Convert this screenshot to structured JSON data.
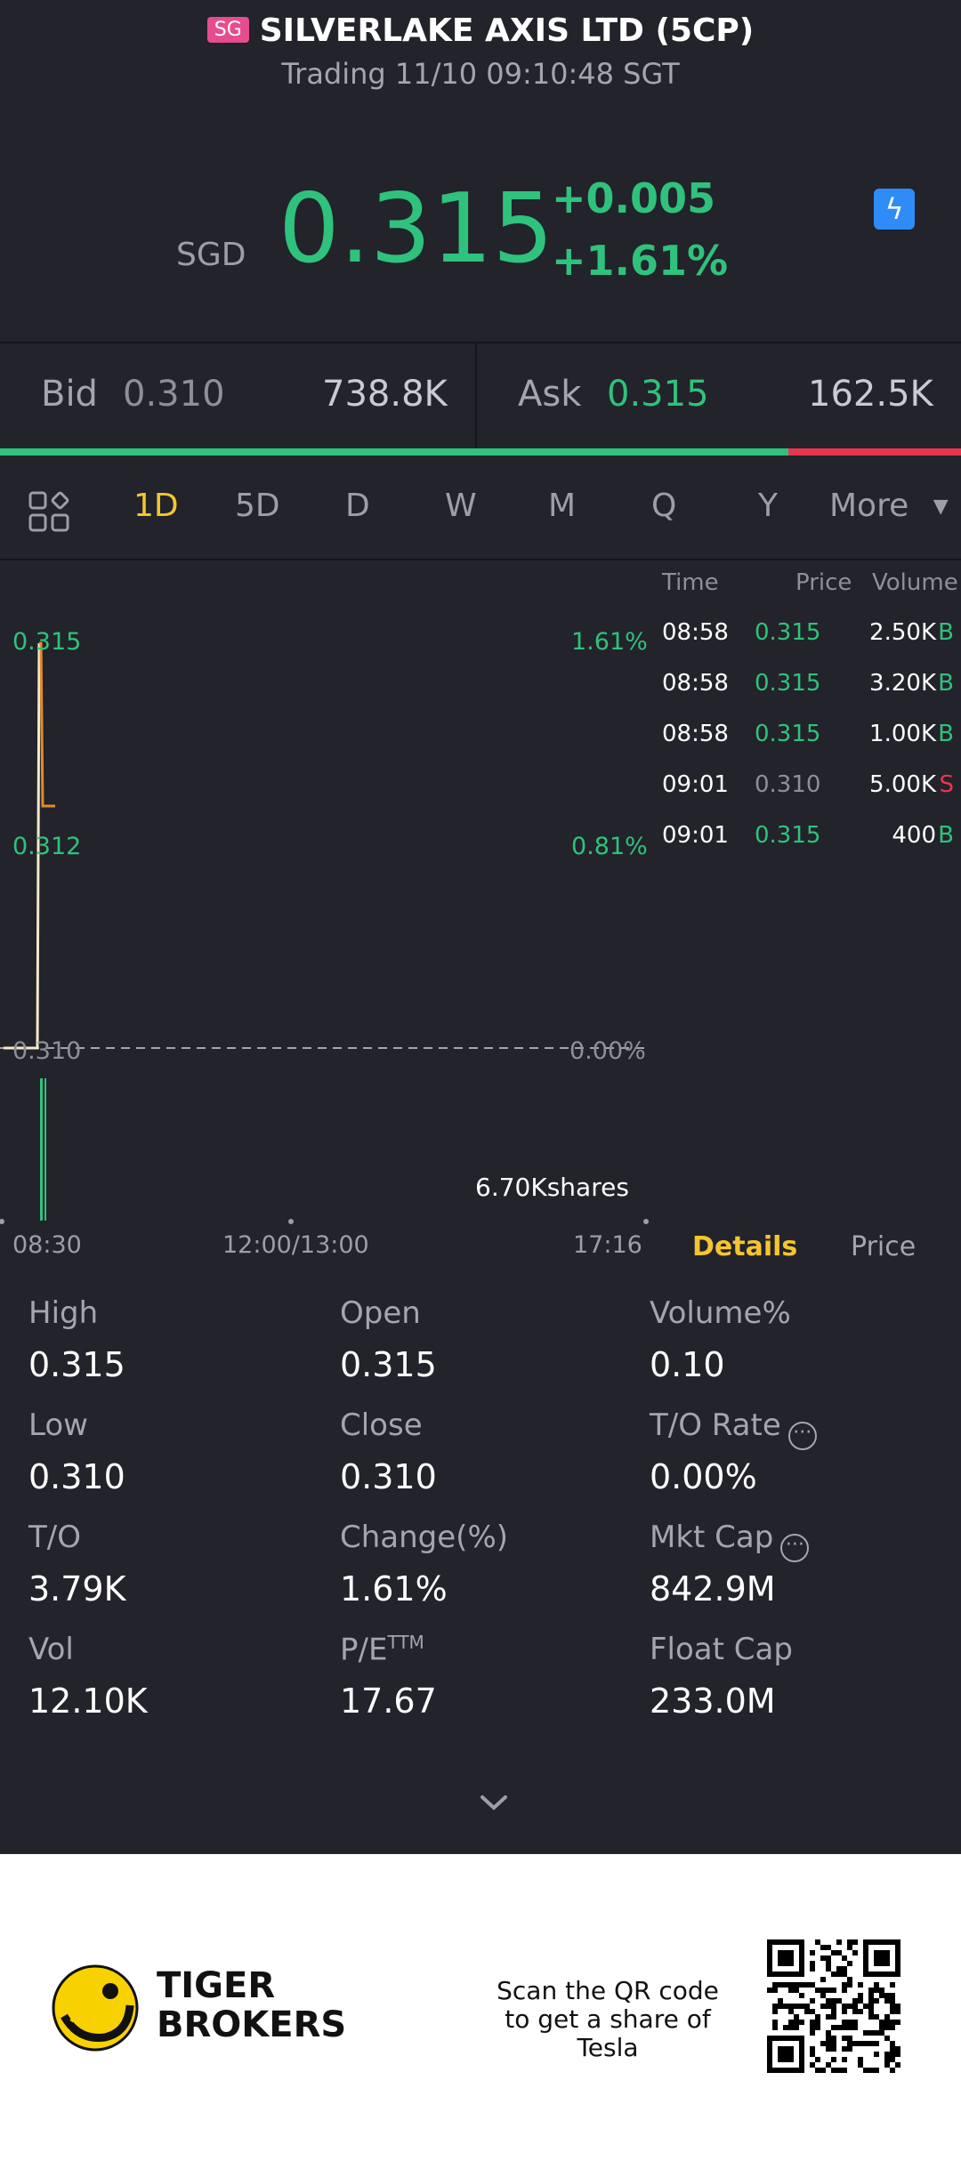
{
  "header": {
    "badge": "SG",
    "title": "SILVERLAKE AXIS LTD (5CP)",
    "subtitle": "Trading 11/10 09:10:48 SGT"
  },
  "quote": {
    "currency": "SGD",
    "price": "0.315",
    "change": "+0.005",
    "change_pct": "+1.61%"
  },
  "bidask": {
    "bid_label": "Bid",
    "bid_price": "0.310",
    "bid_vol": "738.8K",
    "ask_label": "Ask",
    "ask_price": "0.315",
    "ask_vol": "162.5K",
    "bid_ratio": 0.82
  },
  "period_tabs": [
    {
      "label": "1D",
      "active": true
    },
    {
      "label": "5D"
    },
    {
      "label": "D"
    },
    {
      "label": "W"
    },
    {
      "label": "M"
    },
    {
      "label": "Q"
    },
    {
      "label": "Y"
    },
    {
      "label": "More"
    }
  ],
  "chart": {
    "y_left": [
      "0.315",
      "0.312",
      "0.310"
    ],
    "y_right": [
      "1.61%",
      "0.81%",
      "0.00%"
    ],
    "volume_label": "6.70Kshares",
    "x_labels": [
      "08:30",
      "12:00/13:00",
      "17:16"
    ]
  },
  "trades": {
    "headers": [
      "Time",
      "Price",
      "Volume"
    ],
    "rows": [
      {
        "time": "08:58",
        "price": "0.315",
        "vol": "2.50K",
        "side": "B"
      },
      {
        "time": "08:58",
        "price": "0.315",
        "vol": "3.20K",
        "side": "B"
      },
      {
        "time": "08:58",
        "price": "0.315",
        "vol": "1.00K",
        "side": "B"
      },
      {
        "time": "09:01",
        "price": "0.310",
        "vol": "5.00K",
        "side": "S"
      },
      {
        "time": "09:01",
        "price": "0.315",
        "vol": "400",
        "side": "B"
      }
    ]
  },
  "detail_tabs": [
    "Details",
    "Price"
  ],
  "details": [
    {
      "label": "High",
      "value": "0.315"
    },
    {
      "label": "Open",
      "value": "0.315"
    },
    {
      "label": "Volume%",
      "value": "0.10"
    },
    {
      "label": "Low",
      "value": "0.310"
    },
    {
      "label": "Close",
      "value": "0.310"
    },
    {
      "label": "T/O Rate",
      "value": "0.00%"
    },
    {
      "label": "T/O",
      "value": "3.79K"
    },
    {
      "label": "Change(%)",
      "value": "1.61%"
    },
    {
      "label": "Mkt Cap",
      "value": "842.9M"
    },
    {
      "label": "Vol",
      "value": "12.10K"
    },
    {
      "label": "P/E",
      "label_sup": "TTM",
      "value": "17.67"
    },
    {
      "label": "Float Cap",
      "value": "233.0M"
    }
  ],
  "footer": {
    "brand_line1": "TIGER",
    "brand_line2": "BROKERS",
    "scan_text": "Scan the QR code to get a share of Tesla"
  },
  "colors": {
    "background": "#22232b",
    "up": "#2fc27c",
    "down": "#e8364f",
    "active_tab": "#f5c531"
  }
}
